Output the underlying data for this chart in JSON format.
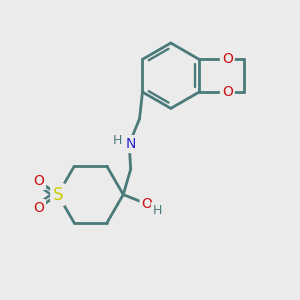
{
  "bg_color": "#ebebeb",
  "bond_color": "#4a7a7a",
  "bond_width": 2.0,
  "N_color": "#2222cc",
  "O_color": "#cc1111",
  "S_color": "#cccc00",
  "label_color": "#4a7a7a",
  "figsize": [
    3.0,
    3.0
  ],
  "dpi": 100,
  "xlim": [
    0,
    10
  ],
  "ylim": [
    0,
    10
  ]
}
